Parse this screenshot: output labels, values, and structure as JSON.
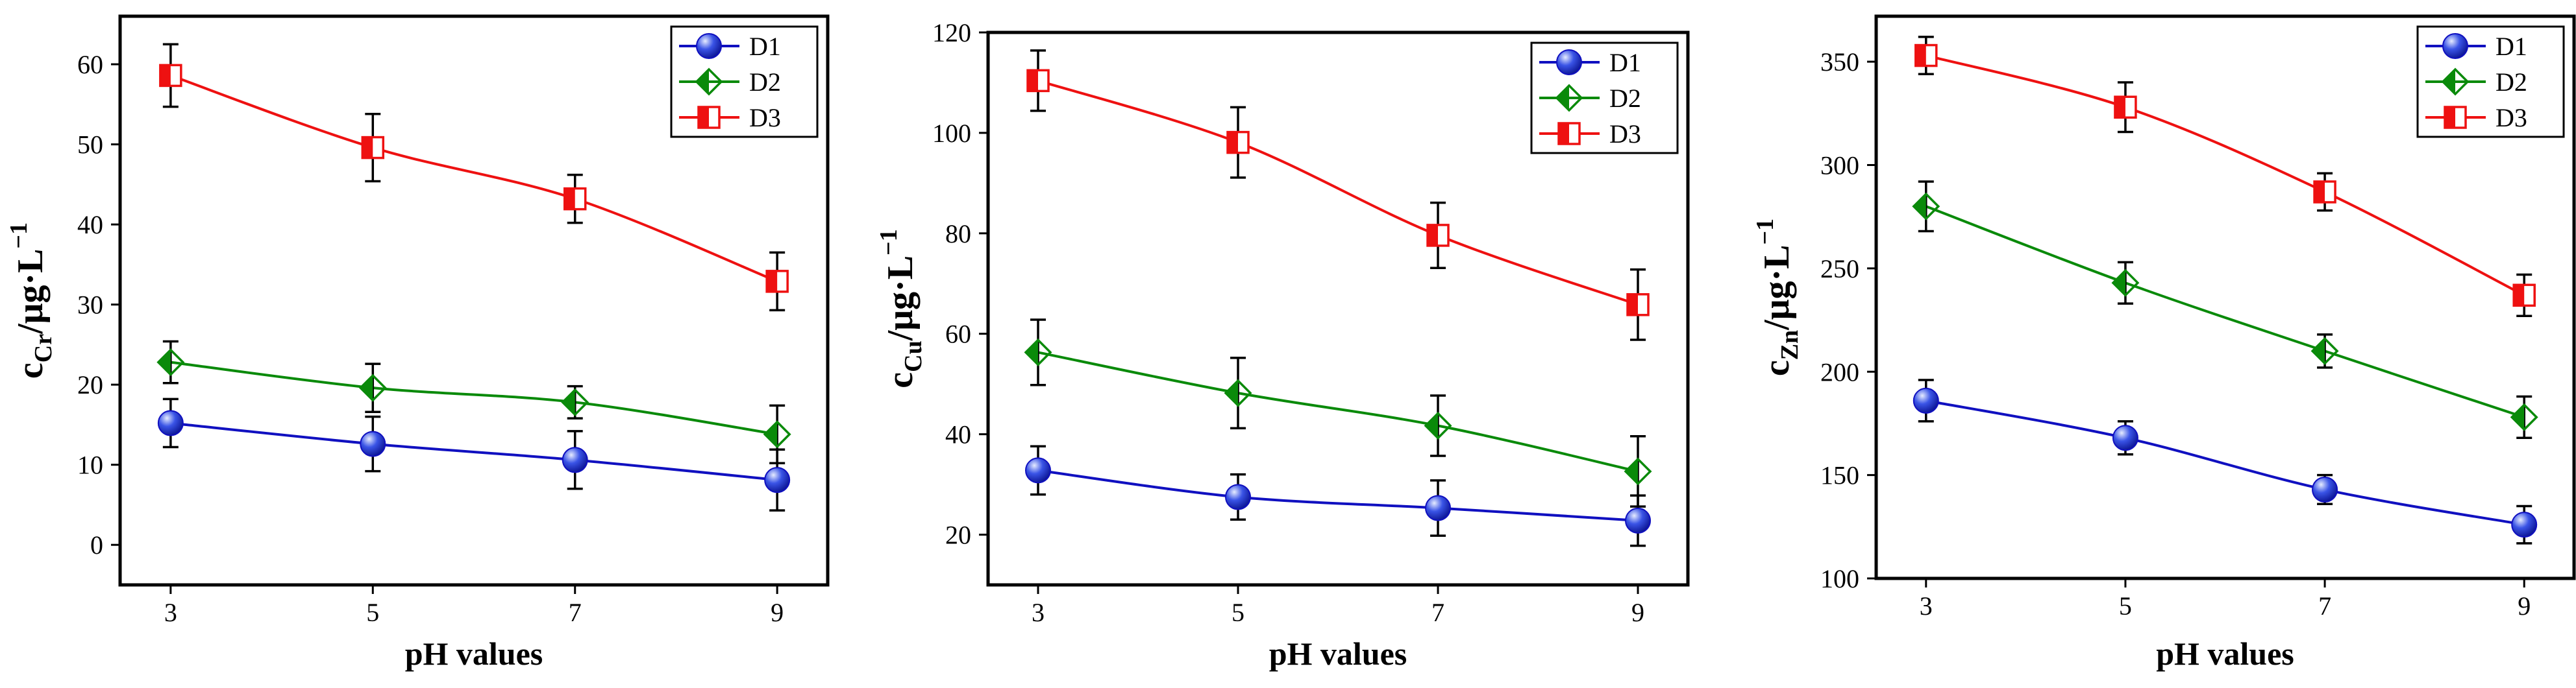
{
  "chart_data": [
    {
      "type": "line",
      "ylabel": {
        "base": "c",
        "sub": "Cr",
        "units": "/μg·L",
        "sup": "−1"
      },
      "xlabel": "pH values",
      "x": [
        3,
        5,
        7,
        9
      ],
      "xlim": [
        2.5,
        9.5
      ],
      "ylim": [
        -5,
        66
      ],
      "yticks": [
        0,
        10,
        20,
        30,
        40,
        50,
        60
      ],
      "series": [
        {
          "name": "D1",
          "color": "#1010c0",
          "marker": "circle",
          "values": [
            15.2,
            12.6,
            10.6,
            8.1
          ],
          "errors": [
            3.0,
            3.4,
            3.6,
            3.8
          ]
        },
        {
          "name": "D2",
          "color": "#0a8a0a",
          "marker": "diamond",
          "values": [
            22.8,
            19.6,
            17.8,
            13.8
          ],
          "errors": [
            2.6,
            3.0,
            2.0,
            3.6
          ]
        },
        {
          "name": "D3",
          "color": "#ee1111",
          "marker": "square",
          "values": [
            58.6,
            49.6,
            43.2,
            32.9
          ],
          "errors": [
            3.9,
            4.2,
            3.0,
            3.6
          ]
        }
      ]
    },
    {
      "type": "line",
      "ylabel": {
        "base": "c",
        "sub": "Cu",
        "units": "/μg·L",
        "sup": "−1"
      },
      "xlabel": "pH values",
      "x": [
        3,
        5,
        7,
        9
      ],
      "xlim": [
        2.5,
        9.5
      ],
      "ylim": [
        10,
        120
      ],
      "yticks": [
        20,
        40,
        60,
        80,
        100,
        120
      ],
      "series": [
        {
          "name": "D1",
          "color": "#1010c0",
          "marker": "circle",
          "values": [
            32.8,
            27.5,
            25.3,
            22.8
          ],
          "errors": [
            4.8,
            4.5,
            5.5,
            5.0
          ]
        },
        {
          "name": "D2",
          "color": "#0a8a0a",
          "marker": "diamond",
          "values": [
            56.3,
            48.2,
            41.7,
            32.6
          ],
          "errors": [
            6.5,
            7.0,
            6.0,
            7.0
          ]
        },
        {
          "name": "D3",
          "color": "#ee1111",
          "marker": "square",
          "values": [
            110.4,
            98.1,
            79.6,
            65.8
          ],
          "errors": [
            6.0,
            7.0,
            6.5,
            7.0
          ]
        }
      ]
    },
    {
      "type": "line",
      "ylabel": {
        "base": "c",
        "sub": "Zn",
        "units": "/μg·L",
        "sup": "−1"
      },
      "xlabel": "pH values",
      "x": [
        3,
        5,
        7,
        9
      ],
      "xlim": [
        2.5,
        9.5
      ],
      "ylim": [
        100,
        372
      ],
      "yticks": [
        100,
        150,
        200,
        250,
        300,
        350
      ],
      "series": [
        {
          "name": "D1",
          "color": "#1010c0",
          "marker": "circle",
          "values": [
            186,
            168,
            143,
            126
          ],
          "errors": [
            10,
            8,
            7,
            9
          ]
        },
        {
          "name": "D2",
          "color": "#0a8a0a",
          "marker": "diamond",
          "values": [
            280,
            243,
            210,
            178
          ],
          "errors": [
            12,
            10,
            8,
            10
          ]
        },
        {
          "name": "D3",
          "color": "#ee1111",
          "marker": "square",
          "values": [
            353,
            328,
            287,
            237
          ],
          "errors": [
            9,
            12,
            9,
            10
          ]
        }
      ]
    }
  ]
}
